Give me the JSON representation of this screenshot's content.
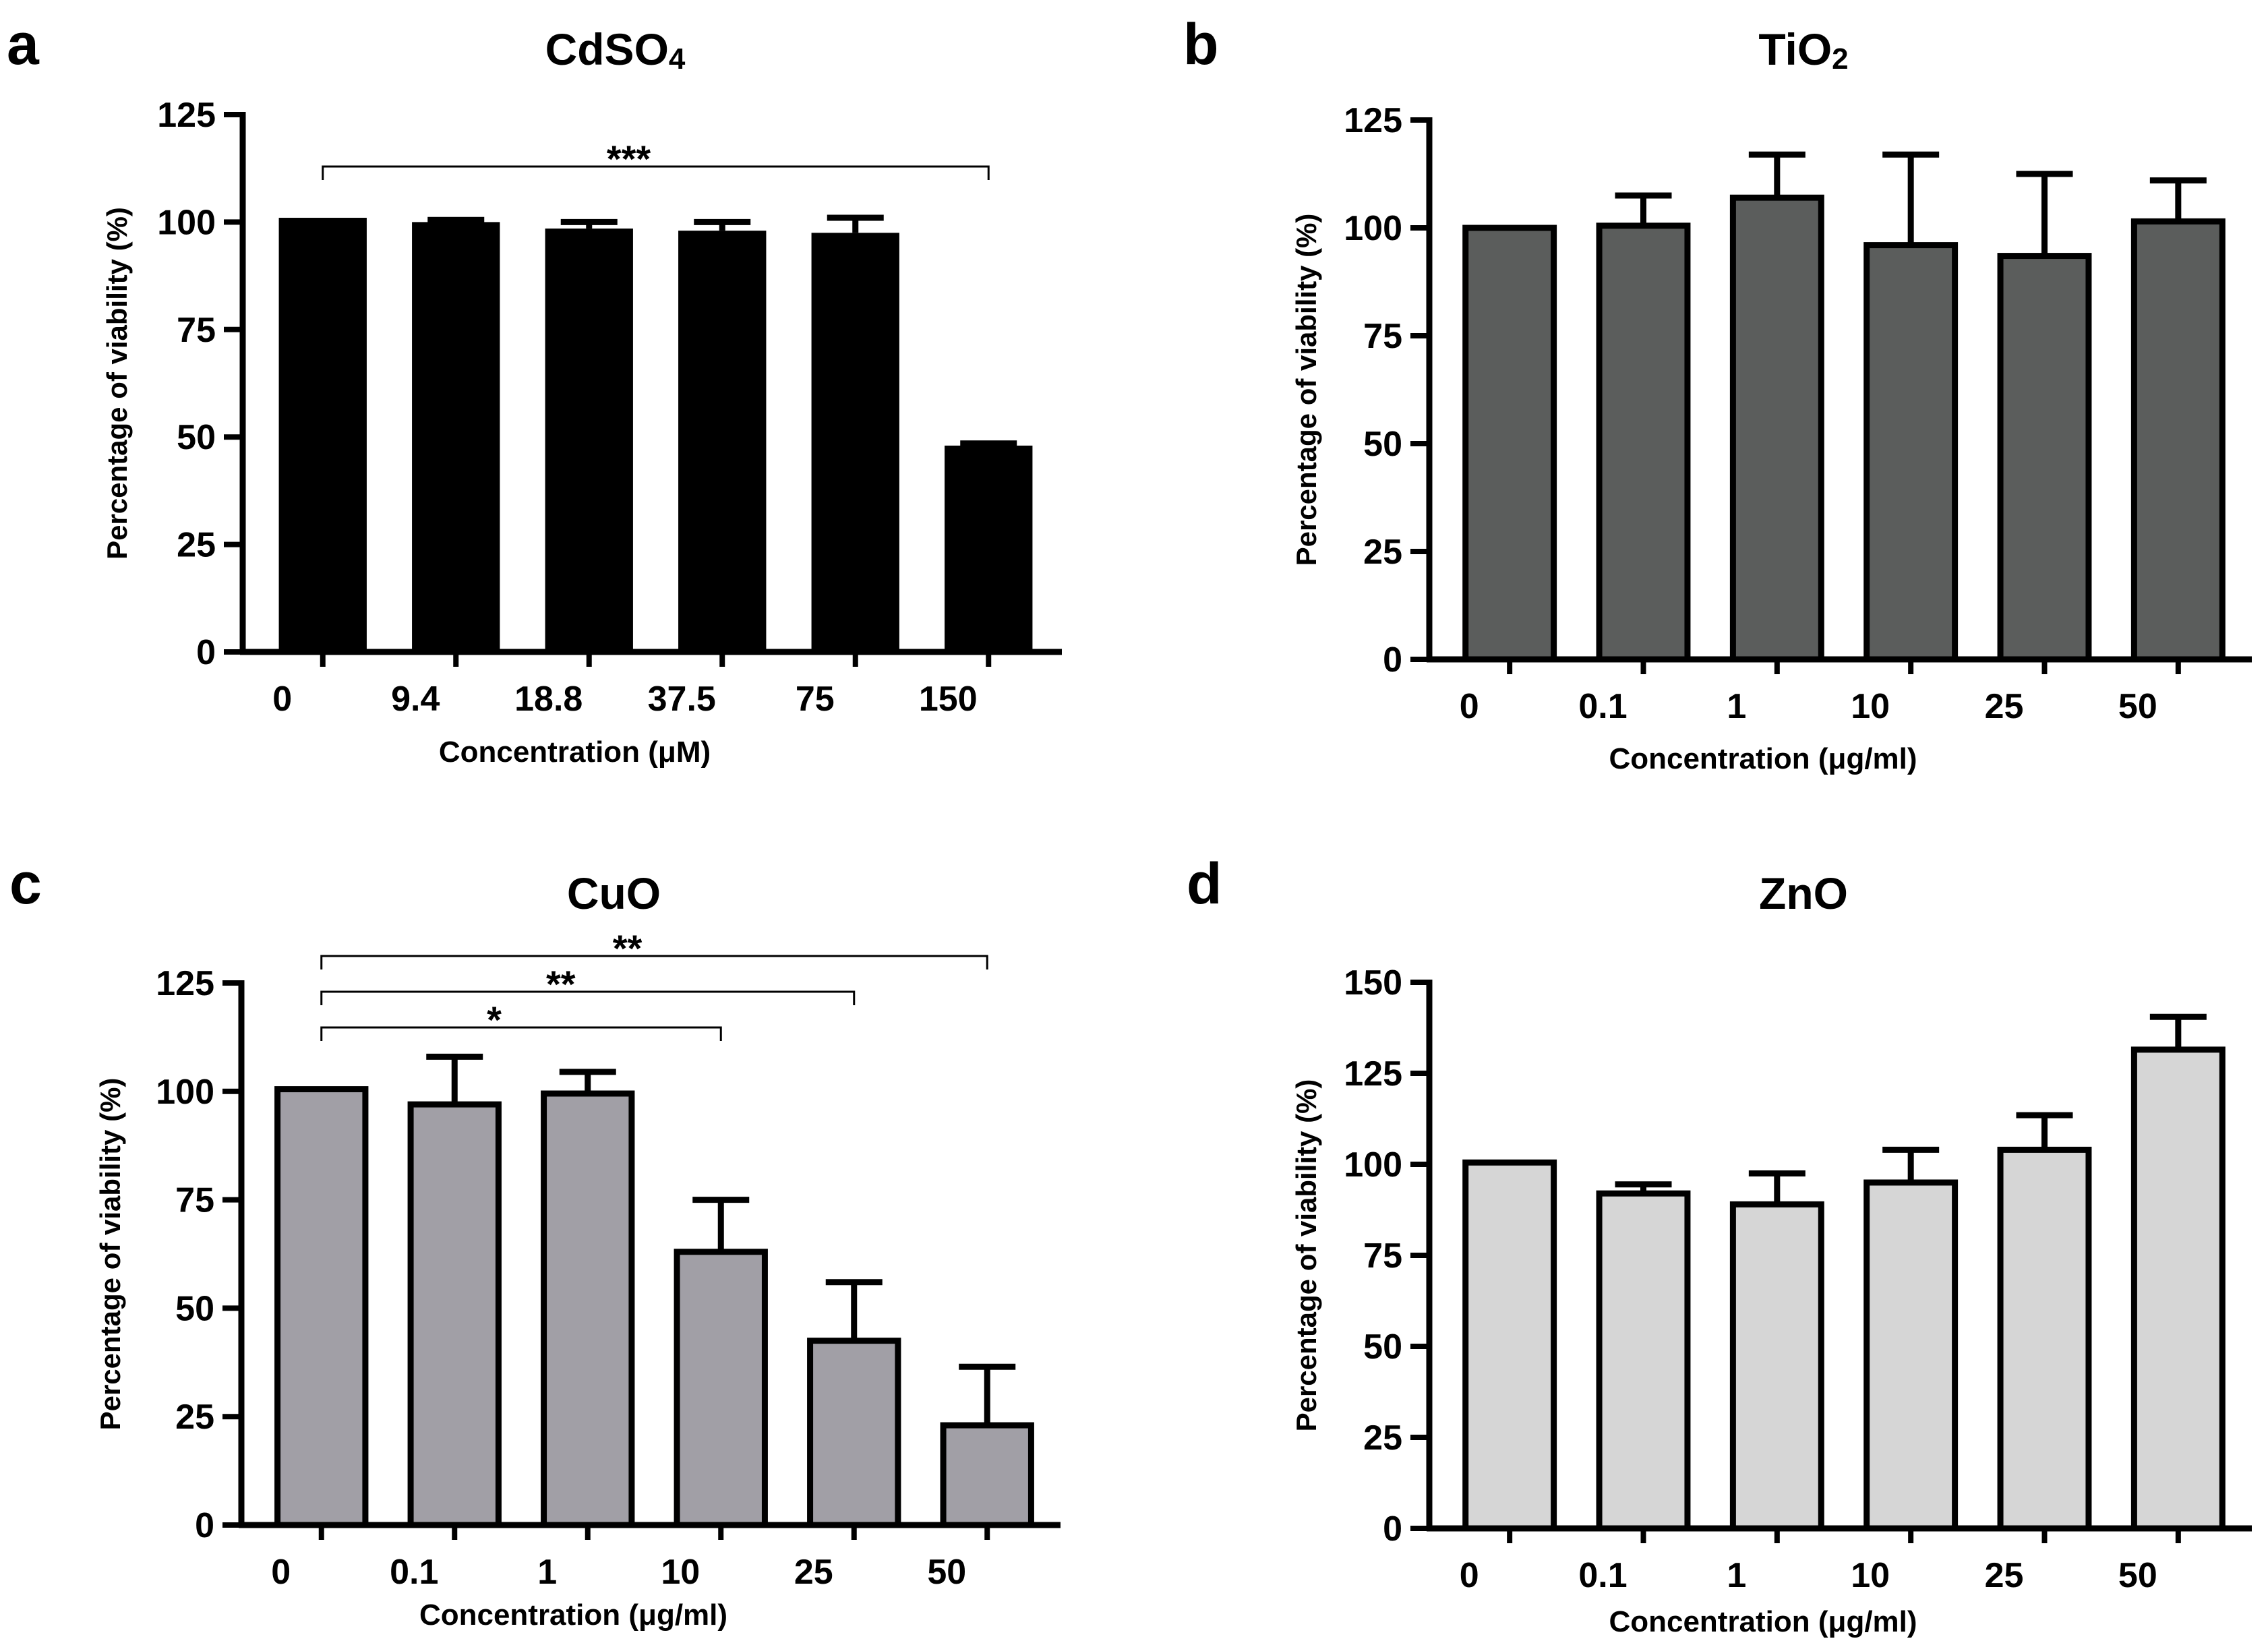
{
  "chart_data": [
    {
      "panel": "a",
      "type": "bar",
      "title": "CdSO4",
      "xlabel": "Concentration (μM)",
      "ylabel": "Percentage of viability (%)",
      "ylim": [
        0,
        125
      ],
      "yticks": [
        "0",
        "25",
        "50",
        "75",
        "100",
        "125"
      ],
      "categories": [
        "0",
        "9.4",
        "18.8",
        "37.5",
        "75",
        "150"
      ],
      "values": [
        101,
        100,
        98.5,
        98,
        97.5,
        48
      ],
      "errors": [
        0,
        0.5,
        1.5,
        2,
        3.5,
        0.5
      ],
      "bar_color": "#000000",
      "significance": [
        {
          "from": 0,
          "to": 5,
          "label": "***"
        }
      ]
    },
    {
      "panel": "b",
      "type": "bar",
      "title": "TiO2",
      "xlabel": "Concentration (μg/ml)",
      "ylabel": "Percentage of viability (%)",
      "ylim": [
        0,
        125
      ],
      "yticks": [
        "0",
        "25",
        "50",
        "75",
        "100",
        "125"
      ],
      "categories": [
        "0",
        "0.1",
        "1",
        "10",
        "25",
        "50"
      ],
      "values": [
        100,
        100.5,
        107,
        96,
        93.5,
        101.5
      ],
      "errors": [
        0,
        7,
        10,
        21,
        19,
        9.5
      ],
      "bar_color": "#5b5d5c",
      "significance": []
    },
    {
      "panel": "c",
      "type": "bar",
      "title": "CuO",
      "xlabel": "Concentration (μg/ml)",
      "ylabel": "Percentage of viability (%)",
      "ylim": [
        0,
        125
      ],
      "yticks": [
        "0",
        "25",
        "50",
        "75",
        "100",
        "125"
      ],
      "categories": [
        "0",
        "0.1",
        "1",
        "10",
        "25",
        "50"
      ],
      "values": [
        100.5,
        97,
        99.5,
        63,
        42.5,
        23
      ],
      "errors": [
        0,
        11,
        5,
        12,
        13.5,
        13.5
      ],
      "bar_color": "#a19fa6",
      "significance": [
        {
          "from": 0,
          "to": 5,
          "label": "**"
        },
        {
          "from": 0,
          "to": 4,
          "label": "**"
        },
        {
          "from": 0,
          "to": 3,
          "label": "*"
        }
      ]
    },
    {
      "panel": "d",
      "type": "bar",
      "title": "ZnO",
      "xlabel": "Concentration (μg/ml)",
      "ylabel": "Percentage of viability (%)",
      "ylim": [
        0,
        150
      ],
      "yticks": [
        "0",
        "25",
        "50",
        "75",
        "100",
        "125",
        "150"
      ],
      "categories": [
        "0",
        "0.1",
        "1",
        "10",
        "25",
        "50"
      ],
      "values": [
        100.5,
        92,
        89,
        95,
        104,
        131.5
      ],
      "errors": [
        0,
        2.5,
        8.5,
        9,
        9.5,
        9
      ],
      "bar_color": "#d6d6d6",
      "significance": []
    }
  ]
}
